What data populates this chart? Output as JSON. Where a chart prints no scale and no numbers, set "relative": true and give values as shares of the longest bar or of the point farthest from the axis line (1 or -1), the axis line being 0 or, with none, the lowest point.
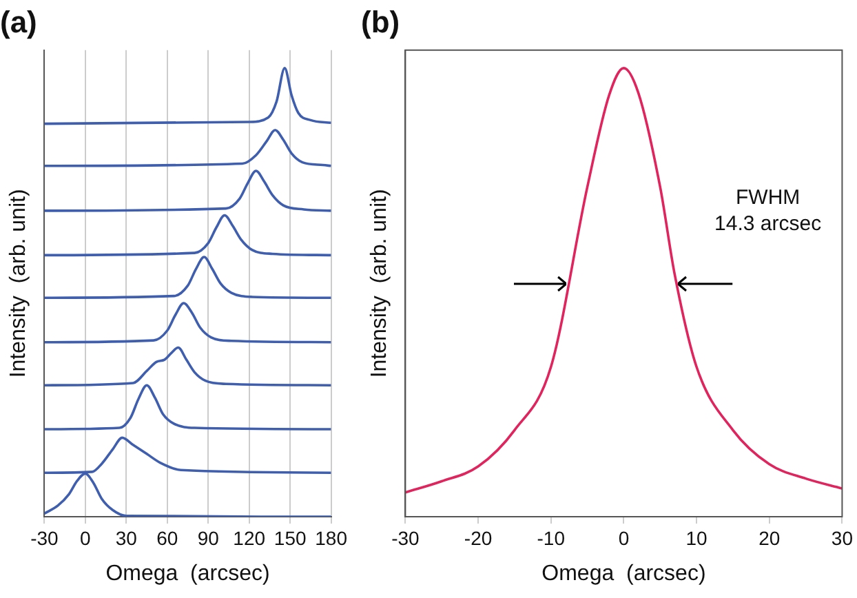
{
  "chart_data": [
    {
      "type": "line",
      "title": "(a)",
      "xlabel": "Omega  (arcsec)",
      "ylabel": "Intensity  (arb. unit)",
      "relative": true,
      "xlim": [
        -30,
        180
      ],
      "xticks": [
        -30,
        0,
        30,
        60,
        90,
        120,
        150,
        180
      ],
      "grid": "x",
      "tick_labels": "x",
      "series": [
        {
          "color": "#3f5fae",
          "x": [
            -30,
            -20,
            -12,
            -6,
            0,
            6,
            12,
            20,
            30,
            180
          ],
          "values": [
            0.007,
            0.025,
            0.05,
            0.08,
            0.096,
            0.075,
            0.04,
            0.015,
            0.002,
            0
          ]
        },
        {
          "color": "#3f5fae",
          "x": [
            -30,
            5,
            12,
            20,
            27,
            35,
            45,
            55,
            70,
            180
          ],
          "values": [
            0.098,
            0.1,
            0.118,
            0.15,
            0.176,
            0.16,
            0.14,
            0.12,
            0.104,
            0.098
          ]
        },
        {
          "color": "#3f5fae",
          "x": [
            -30,
            25,
            33,
            39,
            45,
            51,
            57,
            65,
            80,
            180
          ],
          "values": [
            0.195,
            0.198,
            0.22,
            0.263,
            0.293,
            0.265,
            0.228,
            0.207,
            0.198,
            0.195
          ]
        },
        {
          "color": "#3f5fae",
          "x": [
            -30,
            35,
            45,
            52,
            58,
            63,
            68,
            74,
            80,
            88,
            103,
            180
          ],
          "values": [
            0.293,
            0.298,
            0.325,
            0.345,
            0.35,
            0.365,
            0.377,
            0.35,
            0.322,
            0.303,
            0.296,
            0.293
          ]
        },
        {
          "color": "#3f5fae",
          "x": [
            -30,
            50,
            60,
            66,
            72,
            78,
            84,
            92,
            107,
            180
          ],
          "values": [
            0.389,
            0.393,
            0.415,
            0.45,
            0.476,
            0.455,
            0.422,
            0.4,
            0.392,
            0.389
          ]
        },
        {
          "color": "#3f5fae",
          "x": [
            -30,
            65,
            75,
            81,
            87,
            93,
            99,
            107,
            122,
            180
          ],
          "values": [
            0.488,
            0.492,
            0.515,
            0.552,
            0.579,
            0.552,
            0.52,
            0.499,
            0.49,
            0.488
          ]
        },
        {
          "color": "#3f5fae",
          "x": [
            -30,
            80,
            90,
            96,
            102,
            108,
            114,
            122,
            137,
            180
          ],
          "values": [
            0.583,
            0.588,
            0.61,
            0.645,
            0.672,
            0.648,
            0.618,
            0.595,
            0.586,
            0.583
          ]
        },
        {
          "color": "#3f5fae",
          "x": [
            -30,
            103,
            113,
            119,
            125,
            131,
            137,
            145,
            160,
            180
          ],
          "values": [
            0.682,
            0.687,
            0.709,
            0.744,
            0.771,
            0.747,
            0.717,
            0.694,
            0.685,
            0.682
          ]
        },
        {
          "color": "#3f5fae",
          "x": [
            -30,
            115,
            125,
            133,
            139,
            145,
            151,
            159,
            174,
            180
          ],
          "values": [
            0.782,
            0.787,
            0.806,
            0.838,
            0.862,
            0.84,
            0.81,
            0.79,
            0.784,
            0.782
          ]
        },
        {
          "color": "#3f5fae",
          "x": [
            -30,
            120,
            134,
            140,
            146,
            151,
            156,
            165,
            180
          ],
          "values": [
            0.876,
            0.88,
            0.89,
            0.925,
            1,
            0.94,
            0.9,
            0.884,
            0.878
          ]
        }
      ]
    },
    {
      "type": "line",
      "title": "(b)",
      "xlabel": "Omega  (arcsec)",
      "ylabel": "Intensity  (arb. unit)",
      "relative": true,
      "xlim": [
        -30,
        30
      ],
      "xticks": [
        -30,
        -20,
        -10,
        0,
        10,
        20,
        30
      ],
      "tick_labels": "x",
      "annotations": [
        "FWHM\n14.3 arcsec"
      ],
      "series": [
        {
          "color": "#e0245e",
          "x": [
            -30,
            -25,
            -20,
            -15,
            -10,
            -5,
            -2,
            0,
            2,
            5,
            7,
            10,
            15,
            20,
            25,
            30
          ],
          "values": [
            0.054,
            0.079,
            0.112,
            0.193,
            0.334,
            0.735,
            0.94,
            1,
            0.945,
            0.735,
            0.54,
            0.334,
            0.193,
            0.117,
            0.085,
            0.063
          ]
        }
      ]
    }
  ]
}
